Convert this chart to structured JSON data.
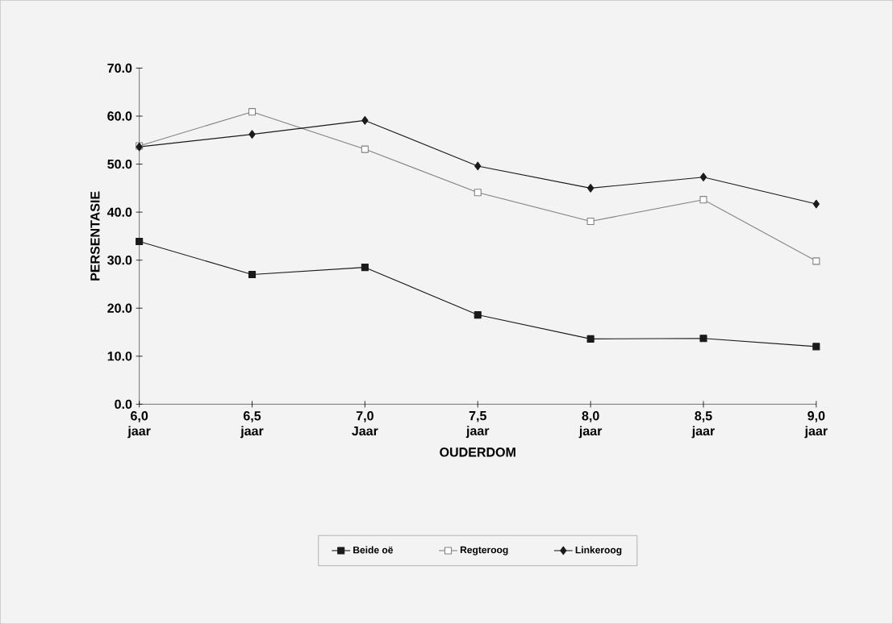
{
  "chart_data": {
    "type": "line",
    "xlabel": "OUDERDOM",
    "ylabel": "PERSENTASIE",
    "categories": [
      "6,0 jaar",
      "6,5 jaar",
      "7,0 Jaar",
      "7,5 jaar",
      "8,0 jaar",
      "8,5 jaar",
      "9,0 jaar"
    ],
    "series": [
      {
        "name": "Beide oë",
        "color": "#1a1a1a",
        "marker": "square",
        "values": [
          33.9,
          27.0,
          28.5,
          18.6,
          13.6,
          13.7,
          12.0
        ]
      },
      {
        "name": "Regteroog",
        "color": "#808080",
        "marker": "square",
        "values": [
          53.8,
          60.9,
          53.1,
          44.1,
          38.1,
          42.6,
          29.8
        ]
      },
      {
        "name": "Linkeroog",
        "color": "#1a1a1a",
        "marker": "diamond",
        "values": [
          53.6,
          56.2,
          59.1,
          49.6,
          45.0,
          47.3,
          41.7
        ]
      }
    ],
    "ylim": [
      0,
      70
    ],
    "yticks": [
      {
        "value": 0,
        "label": "0.0"
      },
      {
        "value": 10,
        "label": "10.0"
      },
      {
        "value": 20,
        "label": "20.0"
      },
      {
        "value": 30,
        "label": "30.0"
      },
      {
        "value": 40,
        "label": "40.0"
      },
      {
        "value": 50,
        "label": "50.0"
      },
      {
        "value": 60,
        "label": "60.0"
      },
      {
        "value": 70,
        "label": "70.0"
      }
    ],
    "grid": false,
    "legend": "bottom",
    "line_style": "solid"
  }
}
